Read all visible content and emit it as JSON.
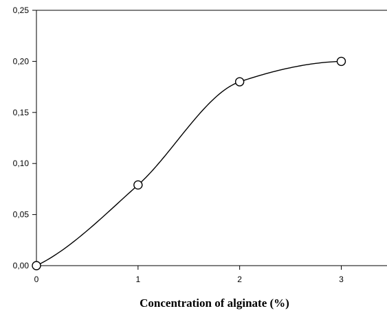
{
  "chart_data": {
    "type": "line",
    "title": "",
    "xlabel": "Concentration of alginate (%)",
    "ylabel": "",
    "xlim": [
      0,
      3.45
    ],
    "ylim": [
      0,
      0.25
    ],
    "x_ticks": [
      "0",
      "1",
      "2",
      "3"
    ],
    "y_ticks": [
      "0,00",
      "0,05",
      "0,10",
      "0,15",
      "0,20",
      "0,25"
    ],
    "grid": false,
    "legend": "none",
    "series": [
      {
        "x": [
          0,
          1,
          2,
          3
        ],
        "y": [
          0.0,
          0.079,
          0.18,
          0.2
        ],
        "marker": "open-circle",
        "line": "smooth"
      }
    ]
  }
}
